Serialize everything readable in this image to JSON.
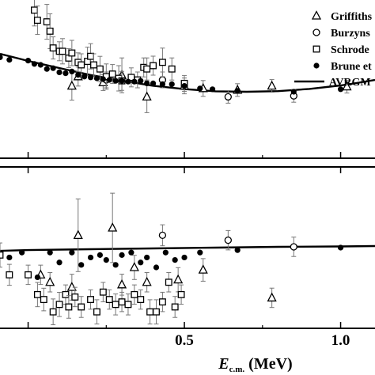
{
  "chart_data": {
    "type": "scatter",
    "xlabel": {
      "main": "E",
      "subscript": "c.m.",
      "unit": "(MeV)"
    },
    "x_ticks": [
      "0.5",
      "1.0"
    ],
    "xlim": [
      -0.09,
      1.11
    ],
    "legend": {
      "placement": "top-right",
      "entries": [
        "Griffiths",
        "Burzyns",
        "Schrode",
        "Brune et",
        "AVRGM"
      ]
    },
    "panels": [
      {
        "name": "upper",
        "ylim": [
          0,
          100
        ],
        "fit_curve": [
          [
            -0.09,
            66
          ],
          [
            0,
            61.5
          ],
          [
            0.1,
            57
          ],
          [
            0.2,
            52.6
          ],
          [
            0.3,
            49
          ],
          [
            0.4,
            45.8
          ],
          [
            0.5,
            43.7
          ],
          [
            0.6,
            42.3
          ],
          [
            0.7,
            42
          ],
          [
            0.8,
            42.4
          ],
          [
            0.9,
            43.8
          ],
          [
            1.0,
            46
          ],
          [
            1.05,
            47.5
          ],
          [
            1.11,
            49.5
          ]
        ],
        "series": [
          {
            "name": "Griffiths",
            "marker": "triangle",
            "points": [
              [
                0.14,
                45.7,
                9
              ],
              [
                0.16,
                51.6,
                6
              ],
              [
                0.24,
                47.8,
                5
              ],
              [
                0.3,
                52.4,
                11
              ],
              [
                0.38,
                38.8,
                10
              ],
              [
                0.5,
                45.7,
                5
              ],
              [
                0.56,
                44.1,
                5
              ],
              [
                0.67,
                43.1,
                4
              ],
              [
                0.78,
                45.7,
                4
              ],
              [
                1.02,
                45.2,
                4
              ]
            ]
          },
          {
            "name": "Burzyns",
            "marker": "circle",
            "points": [
              [
                0.25,
                49.5,
                5
              ],
              [
                0.43,
                49.5,
                5
              ],
              [
                0.64,
                38.8,
                4
              ],
              [
                0.85,
                39.4,
                4
              ]
            ]
          },
          {
            "name": "Schrode",
            "marker": "square",
            "points": [
              [
                0.02,
                93.6,
                10
              ],
              [
                0.03,
                87.2,
                9
              ],
              [
                0.06,
                86.2,
                11
              ],
              [
                0.07,
                80.3,
                11
              ],
              [
                0.08,
                69.7,
                7
              ],
              [
                0.1,
                67.6,
                6
              ],
              [
                0.11,
                67.6,
                8
              ],
              [
                0.13,
                63.3,
                6
              ],
              [
                0.14,
                66.5,
                8
              ],
              [
                0.16,
                60.6,
                6
              ],
              [
                0.17,
                59.0,
                7
              ],
              [
                0.19,
                61.2,
                9
              ],
              [
                0.2,
                64.4,
                8
              ],
              [
                0.21,
                59.0,
                7
              ],
              [
                0.23,
                56.4,
                8
              ],
              [
                0.25,
                51.6,
                8
              ],
              [
                0.27,
                53.2,
                6
              ],
              [
                0.29,
                50.5,
                8
              ],
              [
                0.3,
                48.9,
                6
              ],
              [
                0.33,
                51.1,
                6
              ],
              [
                0.35,
                49.5,
                5
              ],
              [
                0.37,
                57.4,
                6
              ],
              [
                0.38,
                56.4,
                7
              ],
              [
                0.4,
                58.5,
                6
              ],
              [
                0.43,
                60.6,
                9
              ],
              [
                0.46,
                56.4,
                7
              ],
              [
                0.5,
                47.3,
                5
              ]
            ]
          },
          {
            "name": "Brune et",
            "marker": "dot",
            "points": [
              [
                -0.09,
                63.8,
                3
              ],
              [
                -0.06,
                62.2,
                3
              ],
              [
                0.0,
                61.7,
                3
              ],
              [
                0.02,
                59.6,
                3
              ],
              [
                0.04,
                59.0,
                3
              ],
              [
                0.06,
                56.4,
                3
              ],
              [
                0.08,
                56.9,
                3
              ],
              [
                0.1,
                54.3,
                3
              ],
              [
                0.12,
                53.7,
                3
              ],
              [
                0.14,
                54.8,
                3
              ],
              [
                0.16,
                52.7,
                3
              ],
              [
                0.18,
                51.6,
                3
              ],
              [
                0.2,
                51.1,
                3
              ],
              [
                0.22,
                50.5,
                3
              ],
              [
                0.24,
                50.0,
                3
              ],
              [
                0.26,
                49.5,
                3
              ],
              [
                0.28,
                48.9,
                3
              ],
              [
                0.3,
                48.9,
                3
              ],
              [
                0.32,
                48.4,
                3
              ],
              [
                0.34,
                48.4,
                3
              ],
              [
                0.36,
                48.9,
                3
              ],
              [
                0.38,
                47.3,
                3
              ],
              [
                0.4,
                47.3,
                3
              ],
              [
                0.43,
                46.8,
                3
              ],
              [
                0.46,
                46.8,
                3
              ],
              [
                0.5,
                45.7,
                3
              ],
              [
                0.55,
                44.1,
                3
              ],
              [
                0.59,
                43.6,
                3
              ],
              [
                0.67,
                42.6,
                3
              ],
              [
                0.85,
                42.0,
                3
              ],
              [
                1.0,
                43.6,
                3
              ]
            ]
          }
        ]
      },
      {
        "name": "lower",
        "ylim": [
          -100,
          100
        ],
        "fit_curve": [
          [
            -0.09,
            -4
          ],
          [
            0,
            -3
          ],
          [
            0.2,
            -2
          ],
          [
            0.4,
            -1
          ],
          [
            0.6,
            0
          ],
          [
            0.8,
            1
          ],
          [
            1.0,
            1.5
          ],
          [
            1.11,
            2
          ]
        ],
        "series": [
          {
            "name": "Griffiths",
            "marker": "triangle",
            "points": [
              [
                0.04,
                -33.7,
                12
              ],
              [
                0.07,
                -42.9,
                12
              ],
              [
                0.14,
                -49.0,
                16
              ],
              [
                0.16,
                15.3,
                45
              ],
              [
                0.27,
                24.5,
                43
              ],
              [
                0.3,
                -45.9,
                13
              ],
              [
                0.34,
                -24.5,
                15
              ],
              [
                0.38,
                -42.9,
                12
              ],
              [
                0.48,
                -39.8,
                15
              ],
              [
                0.56,
                -27.6,
                14
              ],
              [
                0.78,
                -62.2,
                12
              ]
            ]
          },
          {
            "name": "Burzyns",
            "marker": "circle",
            "points": [
              [
                0.43,
                15.3,
                13
              ],
              [
                0.64,
                9.2,
                12
              ],
              [
                0.85,
                1.0,
                12
              ]
            ]
          },
          {
            "name": "Schrode",
            "marker": "square",
            "points": [
              [
                -0.09,
                -9.2,
                15
              ],
              [
                -0.06,
                -33.7,
                13
              ],
              [
                0.0,
                -33.7,
                12
              ],
              [
                0.03,
                -58.2,
                15
              ],
              [
                0.05,
                -64.3,
                14
              ],
              [
                0.08,
                -79.6,
                16
              ],
              [
                0.1,
                -70.4,
                15
              ],
              [
                0.12,
                -58.2,
                12
              ],
              [
                0.13,
                -73.5,
                14
              ],
              [
                0.15,
                -61.2,
                12
              ],
              [
                0.17,
                -73.5,
                13
              ],
              [
                0.2,
                -64.3,
                12
              ],
              [
                0.22,
                -79.6,
                15
              ],
              [
                0.24,
                -55.1,
                12
              ],
              [
                0.26,
                -64.3,
                12
              ],
              [
                0.28,
                -70.4,
                13
              ],
              [
                0.3,
                -67.3,
                12
              ],
              [
                0.32,
                -70.4,
                13
              ],
              [
                0.34,
                -58.2,
                12
              ],
              [
                0.36,
                -64.3,
                12
              ],
              [
                0.39,
                -79.6,
                15
              ],
              [
                0.41,
                -79.6,
                15
              ],
              [
                0.43,
                -67.3,
                12
              ],
              [
                0.45,
                -42.9,
                12
              ],
              [
                0.47,
                -73.5,
                13
              ],
              [
                0.49,
                -58.2,
                12
              ]
            ]
          },
          {
            "name": "Brune et",
            "marker": "dot",
            "points": [
              [
                -0.06,
                -12.2,
                3
              ],
              [
                -0.02,
                -6.1,
                3
              ],
              [
                0.03,
                -36.7,
                3
              ],
              [
                0.07,
                -6.1,
                3
              ],
              [
                0.1,
                -18.4,
                3
              ],
              [
                0.14,
                -6.1,
                3
              ],
              [
                0.17,
                -21.4,
                3
              ],
              [
                0.2,
                -12.2,
                3
              ],
              [
                0.23,
                -9.2,
                3
              ],
              [
                0.25,
                -15.3,
                3
              ],
              [
                0.28,
                -21.4,
                3
              ],
              [
                0.3,
                -9.2,
                3
              ],
              [
                0.33,
                -6.1,
                3
              ],
              [
                0.36,
                -18.4,
                3
              ],
              [
                0.38,
                -12.2,
                3
              ],
              [
                0.41,
                -24.5,
                3
              ],
              [
                0.44,
                -6.1,
                3
              ],
              [
                0.47,
                -15.3,
                3
              ],
              [
                0.5,
                -12.2,
                3
              ],
              [
                0.55,
                -6.1,
                3
              ],
              [
                0.67,
                -3.1,
                3
              ],
              [
                1.0,
                0.0,
                3
              ]
            ]
          }
        ]
      }
    ]
  }
}
